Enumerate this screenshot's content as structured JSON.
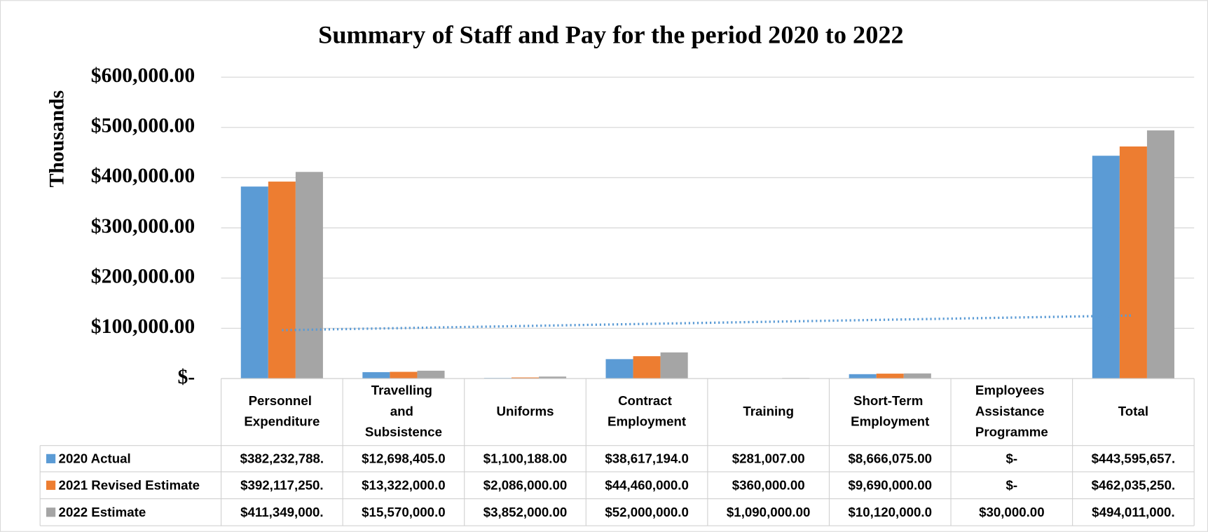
{
  "chart_data": {
    "type": "bar",
    "title": "Summary of Staff and Pay for the period 2020 to 2022",
    "ylabel": "Thousands",
    "categories": [
      "Personnel Expenditure",
      "Travelling and Subsistence",
      "Uniforms",
      "Contract Employment",
      "Training",
      "Short-Term Employment",
      "Employees Assistance Programme",
      "Total"
    ],
    "series": [
      {
        "name": "2020 Actual",
        "color": "#5b9bd5",
        "values": [
          382232.788,
          12698.405,
          1100.188,
          38617.194,
          281.007,
          8666.075,
          0,
          443595.657
        ],
        "value_labels": [
          "$382,232,788.",
          "$12,698,405.0",
          "$1,100,188.00",
          "$38,617,194.0",
          "$281,007.00",
          "$8,666,075.00",
          "$-",
          "$443,595,657."
        ]
      },
      {
        "name": "2021 Revised Estimate",
        "color": "#ed7d31",
        "values": [
          392117.25,
          13322,
          2086,
          44460,
          360,
          9690,
          0,
          462035.25
        ],
        "value_labels": [
          "$392,117,250.",
          "$13,322,000.0",
          "$2,086,000.00",
          "$44,460,000.0",
          "$360,000.00",
          "$9,690,000.00",
          "$-",
          "$462,035,250."
        ]
      },
      {
        "name": "2022 Estimate",
        "color": "#a5a5a5",
        "values": [
          411349,
          15570,
          3852,
          52000,
          1090,
          10120,
          30,
          494011
        ],
        "value_labels": [
          "$411,349,000.",
          "$15,570,000.0",
          "$3,852,000.00",
          "$52,000,000.0",
          "$1,090,000.00",
          "$10,120,000.0",
          "$30,000.00",
          "$494,011,000."
        ]
      }
    ],
    "ylim": [
      0,
      600000
    ],
    "yticks": [
      {
        "value": 0,
        "label": "$-"
      },
      {
        "value": 100000,
        "label": "$100,000.00"
      },
      {
        "value": 200000,
        "label": "$200,000.00"
      },
      {
        "value": 300000,
        "label": "$300,000.00"
      },
      {
        "value": 400000,
        "label": "$400,000.00"
      },
      {
        "value": 500000,
        "label": "$500,000.00"
      },
      {
        "value": 600000,
        "label": "$600,000.00"
      }
    ],
    "grid": true,
    "trendline": {
      "series": 0,
      "type": "linear",
      "color": "#5b9bd5"
    }
  }
}
